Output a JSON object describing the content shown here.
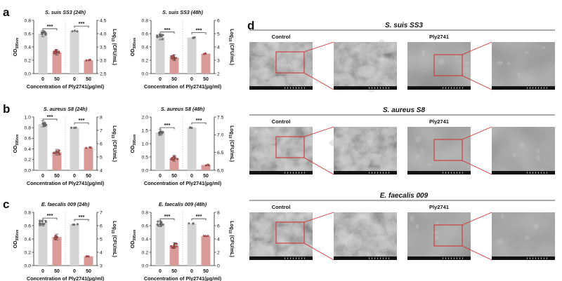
{
  "colors": {
    "control_bar": "#d4d4d4",
    "treated_bar": "#d99a98",
    "control_dot": "#7a7a7a",
    "treated_dot": "#c0504d",
    "box_red": "#d42a2a",
    "sem_bg": "#4a4a4a"
  },
  "figure": {
    "xlabel": "Concentration of Ply2741(μg/ml)",
    "ylabel_left": "OD595nm",
    "ylabel_right": "Log10 (CFU/mL)",
    "sig_label": "***",
    "rows": [
      {
        "letter": "a",
        "organism": "S. suis",
        "strain": "SS3"
      },
      {
        "letter": "b",
        "organism": "S. aureus",
        "strain": "S8"
      },
      {
        "letter": "c",
        "organism": "E. faecalis",
        "strain": "009"
      }
    ]
  },
  "chart_data": [
    {
      "type": "bar",
      "panel": "a-24h",
      "title": "S. suis SS3 (24h)",
      "categories": [
        "0",
        "50"
      ],
      "xlabel": "Concentration of Ply2741(μg/ml)",
      "series": [
        {
          "name": "OD595nm",
          "axis": "left",
          "values": [
            0.6,
            0.32
          ]
        },
        {
          "name": "Log10 (CFU/mL)",
          "axis": "right",
          "values": [
            4.1,
            3.0
          ]
        }
      ],
      "ylim_left": [
        0.0,
        0.8
      ],
      "yticks_left": [
        "0.0",
        "0.2",
        "0.4",
        "0.6",
        "0.8"
      ],
      "ylim_right": [
        2.5,
        4.5
      ],
      "yticks_right": [
        "2.5",
        "3.0",
        "3.5",
        "4.0",
        "4.5"
      ],
      "significance": [
        "***",
        "***"
      ]
    },
    {
      "type": "bar",
      "panel": "a-48h",
      "title": "S. suis SS3 (48h)",
      "categories": [
        "0",
        "50"
      ],
      "xlabel": "Concentration of Ply2741(μg/ml)",
      "series": [
        {
          "name": "OD595nm",
          "axis": "left",
          "values": [
            0.55,
            0.24
          ]
        },
        {
          "name": "Log10 (CFU/mL)",
          "axis": "right",
          "values": [
            4.7,
            3.5
          ]
        }
      ],
      "ylim_left": [
        0.0,
        0.8
      ],
      "yticks_left": [
        "0.0",
        "0.2",
        "0.4",
        "0.6",
        "0.8"
      ],
      "ylim_right": [
        2.0,
        6.0
      ],
      "yticks_right": [
        "2",
        "3",
        "4",
        "5",
        "6"
      ],
      "significance": [
        "***",
        "***"
      ]
    },
    {
      "type": "bar",
      "panel": "b-24h",
      "title": "S. aureus S8 (24h)",
      "categories": [
        "0",
        "50"
      ],
      "xlabel": "Concentration of Ply2741(μg/ml)",
      "series": [
        {
          "name": "OD595nm",
          "axis": "left",
          "values": [
            0.87,
            0.34
          ]
        },
        {
          "name": "Log10 (CFU/mL)",
          "axis": "right",
          "values": [
            7.2,
            5.7
          ]
        }
      ],
      "ylim_left": [
        0.0,
        1.0
      ],
      "yticks_left": [
        "0.0",
        "0.2",
        "0.4",
        "0.6",
        "0.8",
        "1.0"
      ],
      "ylim_right": [
        4,
        8
      ],
      "yticks_right": [
        "4",
        "5",
        "6",
        "7",
        "8"
      ],
      "significance": [
        "***",
        "***"
      ]
    },
    {
      "type": "bar",
      "panel": "b-48h",
      "title": "S. aureus S8 (48h)",
      "categories": [
        "0",
        "50"
      ],
      "xlabel": "Concentration of Ply2741(μg/ml)",
      "series": [
        {
          "name": "OD595nm",
          "axis": "left",
          "values": [
            1.42,
            0.45
          ]
        },
        {
          "name": "Log10 (CFU/mL)",
          "axis": "right",
          "values": [
            7.2,
            6.15
          ]
        }
      ],
      "ylim_left": [
        0.0,
        2.0
      ],
      "yticks_left": [
        "0.0",
        "0.5",
        "1.0",
        "1.5",
        "2.0"
      ],
      "ylim_right": [
        6.0,
        7.5
      ],
      "yticks_right": [
        "6.0",
        "6.5",
        "7.0",
        "7.5"
      ],
      "significance": [
        "***",
        "***"
      ]
    },
    {
      "type": "bar",
      "panel": "c-24h",
      "title": "E. faecalis 009 (24h)",
      "categories": [
        "0",
        "50"
      ],
      "xlabel": "Concentration of Ply2741(μg/ml)",
      "series": [
        {
          "name": "OD595nm",
          "axis": "left",
          "values": [
            0.64,
            0.43
          ]
        },
        {
          "name": "Log10 (CFU/mL)",
          "axis": "right",
          "values": [
            6.1,
            3.7
          ]
        }
      ],
      "ylim_left": [
        0.0,
        0.8
      ],
      "yticks_left": [
        "0.0",
        "0.2",
        "0.4",
        "0.6",
        "0.8"
      ],
      "ylim_right": [
        3,
        7
      ],
      "yticks_right": [
        "3",
        "4",
        "5",
        "6",
        "7"
      ],
      "significance": [
        "***",
        "***"
      ]
    },
    {
      "type": "bar",
      "panel": "c-48h",
      "title": "E. faecalis 009 (48h)",
      "categories": [
        "0",
        "50"
      ],
      "xlabel": "Concentration of Ply2741(μg/ml)",
      "series": [
        {
          "name": "OD595nm",
          "axis": "left",
          "values": [
            0.63,
            0.3
          ]
        },
        {
          "name": "Log10 (CFU/mL)",
          "axis": "right",
          "values": [
            6.3,
            4.4
          ]
        }
      ],
      "ylim_left": [
        0.0,
        0.8
      ],
      "yticks_left": [
        "0.0",
        "0.2",
        "0.4",
        "0.6",
        "0.8"
      ],
      "ylim_right": [
        0,
        8
      ],
      "yticks_right": [
        "0",
        "2",
        "4",
        "6",
        "8"
      ],
      "significance": [
        "***",
        "***"
      ]
    }
  ],
  "panel_d": {
    "letter": "d",
    "rows": [
      {
        "title": "S. suis SS3",
        "left_label": "Control",
        "right_label": "Ply2741"
      },
      {
        "title": "S. aureus S8",
        "left_label": "Control",
        "right_label": "Ply2741"
      },
      {
        "title": "E. faecalis 009",
        "left_label": "Control",
        "right_label": "Ply2741"
      }
    ]
  }
}
